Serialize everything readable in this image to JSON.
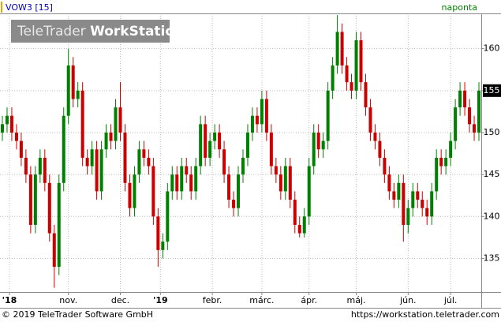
{
  "chart_data": {
    "type": "candlestick",
    "title": "VOW3 [15]",
    "interval": "naponta",
    "watermark": {
      "brand": "TeleTrader",
      "product": "WorkStation"
    },
    "open": [
      150,
      151,
      152,
      150,
      149,
      147,
      145,
      139,
      145,
      147,
      144,
      138,
      134,
      144,
      152,
      158,
      154,
      155,
      147,
      146,
      148,
      143,
      148,
      150,
      149,
      153,
      150,
      144,
      141,
      145,
      148,
      147,
      146,
      140,
      136,
      137,
      143,
      145,
      143,
      146,
      145,
      143,
      146,
      151,
      147,
      149,
      150,
      148,
      145,
      142,
      141,
      145,
      147,
      150,
      152,
      151,
      154,
      150,
      146,
      145,
      143,
      146,
      142,
      139,
      138,
      140,
      146,
      150,
      148,
      149,
      155,
      158,
      162,
      158,
      156,
      155,
      161,
      156,
      153,
      150,
      149,
      147,
      145,
      143,
      142,
      144,
      139,
      141,
      143,
      142,
      141,
      140,
      143,
      147,
      146,
      147,
      149,
      153,
      155,
      153,
      151,
      150
    ],
    "high": [
      152,
      153,
      153,
      151,
      150,
      148,
      146,
      146,
      148,
      148,
      145,
      139,
      145,
      153,
      160,
      159,
      156,
      156,
      148,
      149,
      149,
      149,
      151,
      151,
      154,
      156,
      151,
      145,
      146,
      149,
      149,
      148,
      147,
      141,
      138,
      144,
      146,
      146,
      147,
      147,
      146,
      147,
      152,
      152,
      150,
      151,
      151,
      149,
      146,
      143,
      146,
      148,
      151,
      153,
      153,
      155,
      155,
      151,
      147,
      146,
      147,
      147,
      143,
      140,
      141,
      147,
      151,
      151,
      150,
      156,
      159,
      164,
      163,
      159,
      157,
      162,
      162,
      157,
      154,
      151,
      150,
      148,
      146,
      144,
      145,
      145,
      142,
      144,
      144,
      143,
      142,
      144,
      148,
      148,
      148,
      150,
      154,
      156,
      156,
      154,
      152,
      156
    ],
    "low": [
      149,
      150,
      149,
      148,
      146,
      144,
      138,
      138,
      144,
      143,
      137,
      131.5,
      133,
      143,
      151,
      153,
      153,
      146,
      145,
      145,
      142,
      142,
      147,
      148,
      148,
      149,
      143,
      140,
      140,
      144,
      146,
      145,
      139,
      134,
      135,
      136,
      142,
      142,
      142,
      144,
      142,
      142,
      145,
      146,
      146,
      148,
      147,
      144,
      141,
      140,
      140,
      144,
      146,
      149,
      150,
      150,
      149,
      145,
      144,
      142,
      142,
      141,
      138,
      137.5,
      137.5,
      139,
      145,
      147,
      147,
      148,
      154,
      157,
      157,
      155,
      154,
      154,
      155,
      152,
      149,
      148,
      146,
      144,
      142,
      141,
      141,
      137,
      138,
      140,
      141,
      140,
      139,
      139,
      142,
      145,
      145,
      146,
      148,
      152,
      152,
      150,
      149,
      149
    ],
    "close": [
      151,
      152,
      150,
      149,
      147,
      145,
      139,
      145,
      147,
      144,
      138,
      134,
      144,
      152,
      158,
      154,
      155,
      147,
      146,
      148,
      143,
      148,
      150,
      149,
      153,
      150,
      144,
      141,
      145,
      148,
      147,
      146,
      140,
      136,
      137,
      143,
      145,
      143,
      146,
      145,
      143,
      146,
      151,
      147,
      149,
      150,
      148,
      145,
      142,
      141,
      145,
      147,
      150,
      152,
      151,
      154,
      150,
      146,
      145,
      143,
      146,
      142,
      139,
      138,
      140,
      146,
      150,
      148,
      149,
      155,
      158,
      162,
      158,
      156,
      155,
      161,
      156,
      153,
      150,
      149,
      147,
      145,
      143,
      142,
      144,
      139,
      141,
      143,
      142,
      141,
      140,
      143,
      147,
      146,
      147,
      149,
      153,
      155,
      153,
      151,
      150,
      155
    ],
    "up_color": "#008000",
    "down_color": "#cc0000",
    "xlim": [
      -0.5,
      101.5
    ],
    "xticks": [
      {
        "value": 1.5,
        "label": "'18"
      },
      {
        "value": 14,
        "label": "nov."
      },
      {
        "value": 25,
        "label": "dec."
      },
      {
        "value": 33.5,
        "label": "'19"
      },
      {
        "value": 44.5,
        "label": "febr."
      },
      {
        "value": 55,
        "label": "márc."
      },
      {
        "value": 65,
        "label": "ápr."
      },
      {
        "value": 75,
        "label": "máj."
      },
      {
        "value": 86,
        "label": "jún."
      },
      {
        "value": 95,
        "label": "júl."
      }
    ],
    "ylim": [
      131,
      164.2
    ],
    "yticks": [
      135,
      140,
      145,
      150,
      155,
      160
    ],
    "grid": true
  },
  "footer": {
    "copyright": "© 2019 TeleTrader Software GmbH",
    "url": "https://workstation.teletrader.com"
  }
}
